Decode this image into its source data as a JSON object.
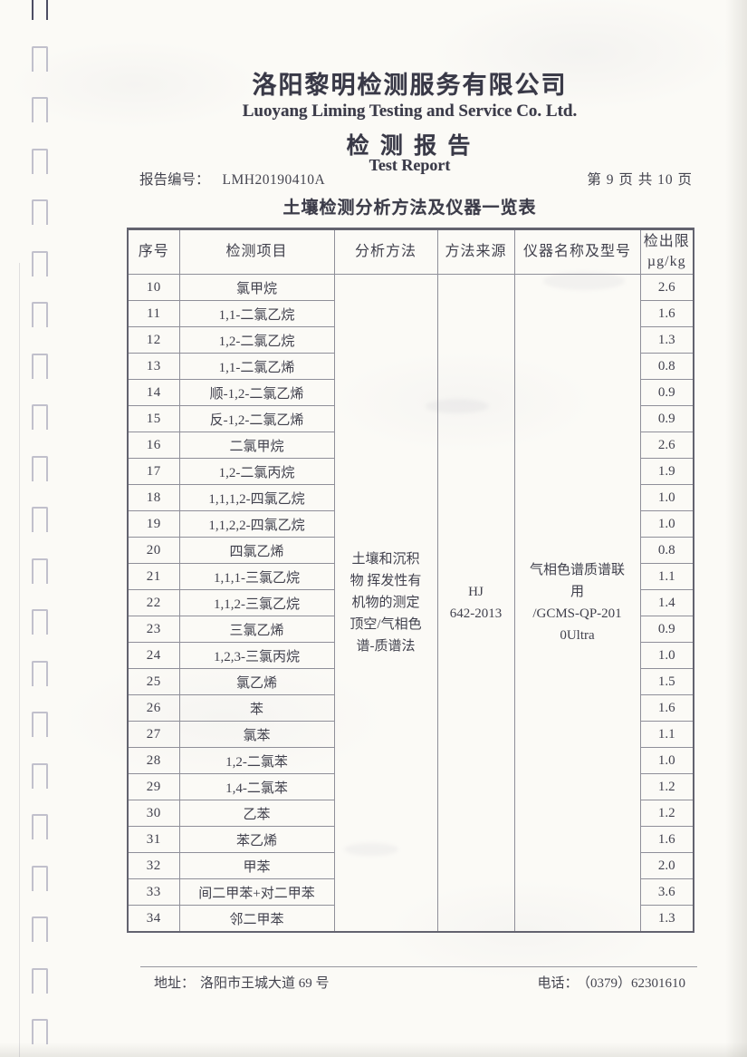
{
  "page": {
    "company_cn": "洛阳黎明检测服务有限公司",
    "company_en": "Luoyang Liming Testing and Service Co. Ltd.",
    "doc_title_cn": "检 测 报 告",
    "doc_title_en": "Test Report",
    "report_no_label": "报告编号：",
    "report_no": "LMH20190410A",
    "page_indicator": "第 9 页 共 10 页",
    "table_title": "土壤检测分析方法及仪器一览表",
    "ink_color": "#41414d",
    "footer": {
      "address_label": "地址：",
      "address": "洛阳市王城大道 69 号",
      "phone_label": "电话：",
      "phone": "（0379）62301610"
    }
  },
  "table": {
    "headers": [
      "序号",
      "检测项目",
      "分析方法",
      "方法来源",
      "仪器名称及型号",
      "检出限\nµg/kg"
    ],
    "merged": {
      "analysis_method": "土壤和沉积\n物 挥发性有\n机物的测定\n顶空/气相色\n谱-质谱法",
      "method_source": "HJ\n642-2013",
      "instrument": "气相色谱质谱联\n用\n/GCMS-QP-201\n0Ultra"
    },
    "rows": [
      {
        "no": "10",
        "item": "氯甲烷",
        "limit": "2.6"
      },
      {
        "no": "11",
        "item": "1,1-二氯乙烷",
        "limit": "1.6"
      },
      {
        "no": "12",
        "item": "1,2-二氯乙烷",
        "limit": "1.3"
      },
      {
        "no": "13",
        "item": "1,1-二氯乙烯",
        "limit": "0.8"
      },
      {
        "no": "14",
        "item": "顺-1,2-二氯乙烯",
        "limit": "0.9"
      },
      {
        "no": "15",
        "item": "反-1,2-二氯乙烯",
        "limit": "0.9"
      },
      {
        "no": "16",
        "item": "二氯甲烷",
        "limit": "2.6"
      },
      {
        "no": "17",
        "item": "1,2-二氯丙烷",
        "limit": "1.9"
      },
      {
        "no": "18",
        "item": "1,1,1,2-四氯乙烷",
        "limit": "1.0"
      },
      {
        "no": "19",
        "item": "1,1,2,2-四氯乙烷",
        "limit": "1.0"
      },
      {
        "no": "20",
        "item": "四氯乙烯",
        "limit": "0.8"
      },
      {
        "no": "21",
        "item": "1,1,1-三氯乙烷",
        "limit": "1.1"
      },
      {
        "no": "22",
        "item": "1,1,2-三氯乙烷",
        "limit": "1.4"
      },
      {
        "no": "23",
        "item": "三氯乙烯",
        "limit": "0.9"
      },
      {
        "no": "24",
        "item": "1,2,3-三氯丙烷",
        "limit": "1.0"
      },
      {
        "no": "25",
        "item": "氯乙烯",
        "limit": "1.5"
      },
      {
        "no": "26",
        "item": "苯",
        "limit": "1.6"
      },
      {
        "no": "27",
        "item": "氯苯",
        "limit": "1.1"
      },
      {
        "no": "28",
        "item": "1,2-二氯苯",
        "limit": "1.0"
      },
      {
        "no": "29",
        "item": "1,4-二氯苯",
        "limit": "1.2"
      },
      {
        "no": "30",
        "item": "乙苯",
        "limit": "1.2"
      },
      {
        "no": "31",
        "item": "苯乙烯",
        "limit": "1.6"
      },
      {
        "no": "32",
        "item": "甲苯",
        "limit": "2.0"
      },
      {
        "no": "33",
        "item": "间二甲苯+对二甲苯",
        "limit": "3.6"
      },
      {
        "no": "34",
        "item": "邻二甲苯",
        "limit": "1.3"
      }
    ]
  }
}
